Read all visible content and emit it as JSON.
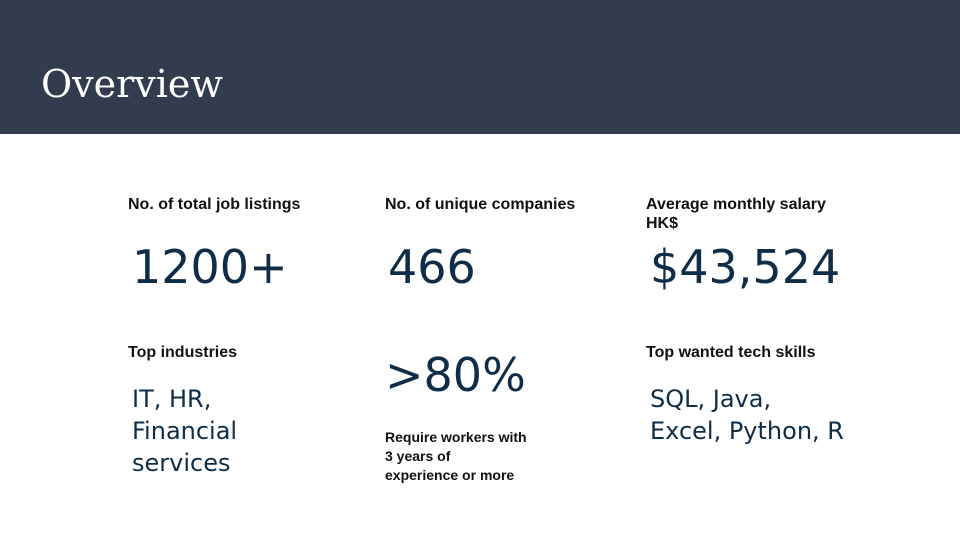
{
  "slide": {
    "title": "Overview",
    "header_color": "#333b4e",
    "accent_color": "#0f2d47"
  },
  "stats": {
    "listings": {
      "label": "No. of total job listings",
      "value": "1200+"
    },
    "companies": {
      "label": "No. of unique companies",
      "value": "466"
    },
    "salary": {
      "label_lines": [
        "Average monthly salary",
        "HK$"
      ],
      "value": "$43,524"
    },
    "industries": {
      "label": "Top industries",
      "value_lines": [
        "IT, HR,",
        "Financial",
        "services"
      ]
    },
    "experience": {
      "value": ">80%",
      "caption_lines": [
        "Require workers with",
        "3 years of",
        "experience or more"
      ]
    },
    "skills": {
      "label": "Top wanted tech skills",
      "value_lines": [
        "SQL, Java,",
        "Excel, Python, R"
      ]
    }
  }
}
